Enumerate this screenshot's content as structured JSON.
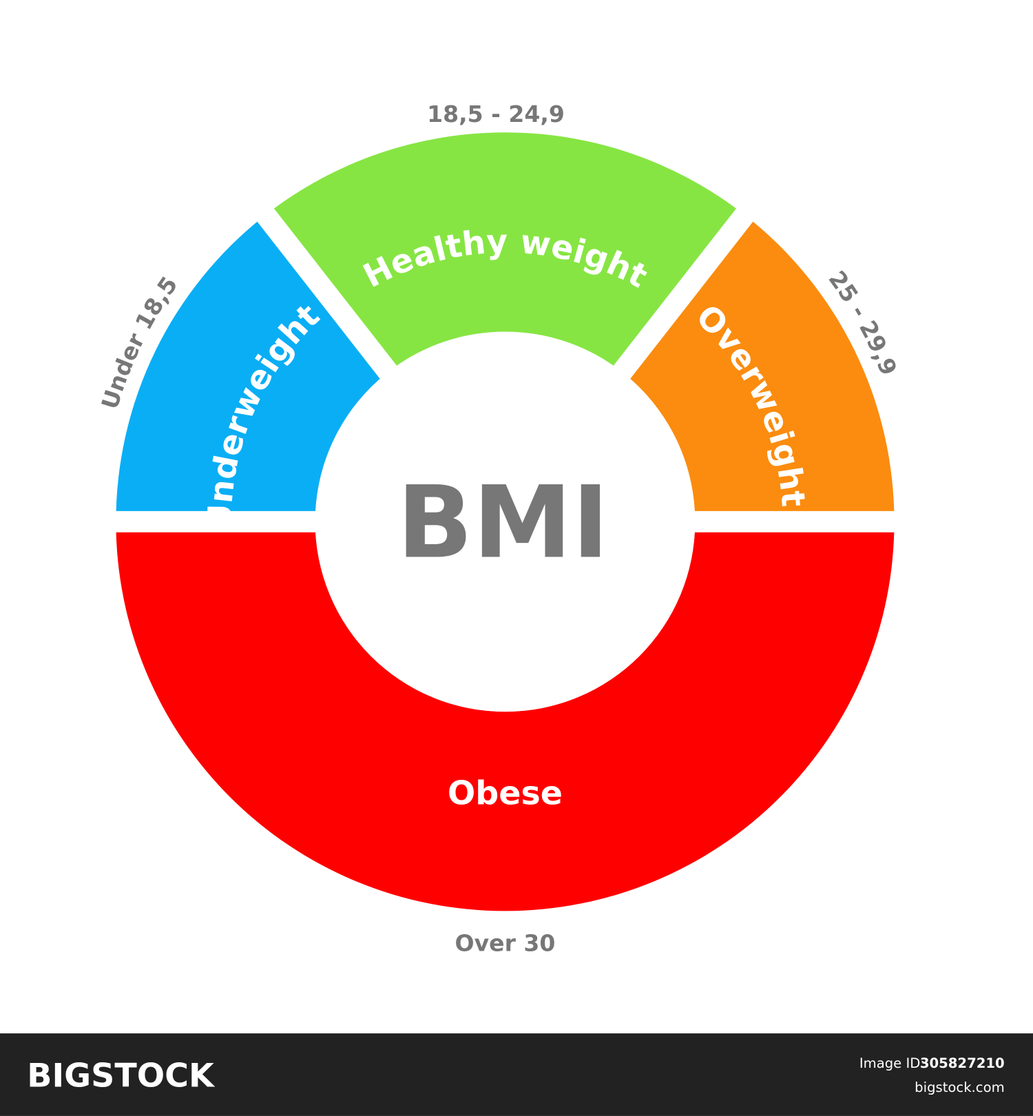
{
  "center_label": "BMI",
  "segments": [
    {
      "label": "Underweight",
      "range": "Under 18,5"
    },
    {
      "label": "Healthy weight",
      "range": "18,5 - 24,9"
    },
    {
      "label": "Overweight",
      "range": "25 - 29,9"
    },
    {
      "label": "Obese",
      "range": "Over 30"
    }
  ],
  "footer": {
    "brand": "BIGSTOCK",
    "image_id_label": "Image ID:",
    "image_id": "305827210",
    "site": "bigstock.com"
  }
}
